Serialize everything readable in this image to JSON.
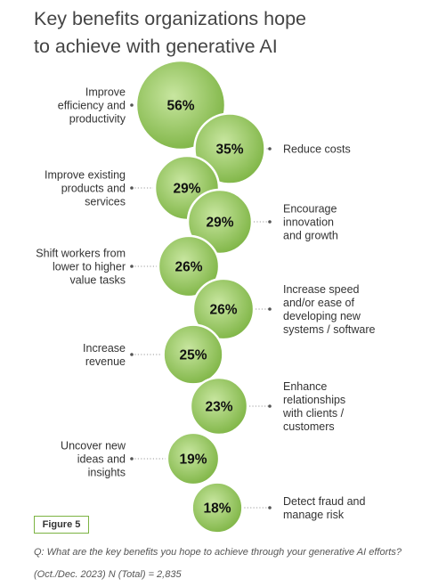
{
  "title_line1": "Key benefits organizations hope",
  "title_line2": "to achieve with generative AI",
  "chart_data": {
    "type": "bubble",
    "unit": "%",
    "title": "Key benefits organizations hope to achieve with generative AI",
    "items": [
      {
        "label": [
          "Improve",
          "efficiency and",
          "productivity"
        ],
        "value": 56,
        "side": "left"
      },
      {
        "label": [
          "Reduce costs"
        ],
        "value": 35,
        "side": "right"
      },
      {
        "label": [
          "Improve existing",
          "products and",
          "services"
        ],
        "value": 29,
        "side": "left"
      },
      {
        "label": [
          "Encourage",
          "innovation",
          "and growth"
        ],
        "value": 29,
        "side": "right"
      },
      {
        "label": [
          "Shift workers from",
          "lower to higher",
          "value tasks"
        ],
        "value": 26,
        "side": "left"
      },
      {
        "label": [
          "Increase speed",
          "and/or ease of",
          "developing new",
          "systems / software"
        ],
        "value": 26,
        "side": "right"
      },
      {
        "label": [
          "Increase",
          "revenue"
        ],
        "value": 25,
        "side": "left"
      },
      {
        "label": [
          "Enhance",
          "relationships",
          "with clients /",
          "customers"
        ],
        "value": 23,
        "side": "right"
      },
      {
        "label": [
          "Uncover new",
          "ideas and",
          "insights"
        ],
        "value": 19,
        "side": "left"
      },
      {
        "label": [
          "Detect fraud and",
          "manage risk"
        ],
        "value": 18,
        "side": "right"
      }
    ],
    "colors": {
      "center": "#c8e6a0",
      "edge": "#7cb342"
    }
  },
  "figure_label": "Figure 5",
  "question": "Q: What are the key benefits you hope to achieve through your generative AI efforts?",
  "sample": "(Oct./Dec. 2023) N (Total) = 2,835"
}
